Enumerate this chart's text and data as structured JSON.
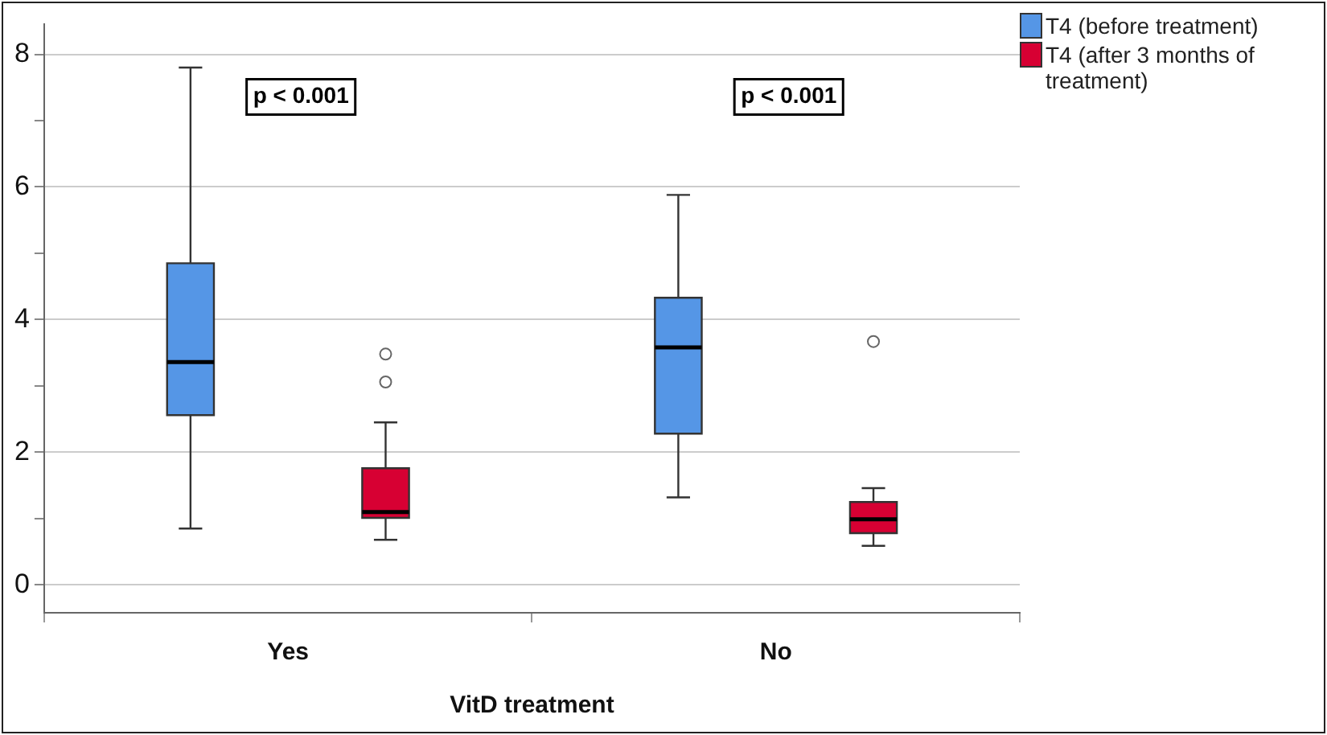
{
  "chart_data": {
    "type": "box",
    "xlabel": "VitD treatment",
    "categories": [
      "Yes",
      "No"
    ],
    "ylim": [
      -0.42,
      8.45
    ],
    "yticks": [
      0,
      {
        "value": 1,
        "label": null
      },
      2,
      {
        "value": 3,
        "label": null
      },
      4,
      {
        "value": 5,
        "label": null
      },
      6,
      {
        "value": 7,
        "label": null
      },
      8
    ],
    "grid": "y",
    "legend": "top right",
    "marker": "circle",
    "annotations": [
      "p < 0.001",
      "p < 0.001"
    ],
    "series": [
      {
        "name": "T4 (before treatment)",
        "color": "#5596e6",
        "boxes": [
          {
            "low": 0.85,
            "q1": 2.56,
            "median": 3.36,
            "q3": 4.85,
            "high": 7.8
          },
          {
            "low": 1.32,
            "q1": 2.28,
            "median": 3.58,
            "q3": 4.33,
            "high": 5.88
          }
        ]
      },
      {
        "name": "T4 (after 3 months of treatment)",
        "color": "#d70033",
        "boxes": [
          {
            "low": 0.68,
            "q1": 1.01,
            "median": 1.1,
            "q3": 1.76,
            "high": 2.45,
            "outliers": [
              3.06,
              3.48
            ]
          },
          {
            "low": 0.59,
            "q1": 0.78,
            "median": 0.99,
            "q3": 1.25,
            "high": 1.46,
            "outliers": [
              3.67
            ]
          }
        ]
      }
    ]
  }
}
